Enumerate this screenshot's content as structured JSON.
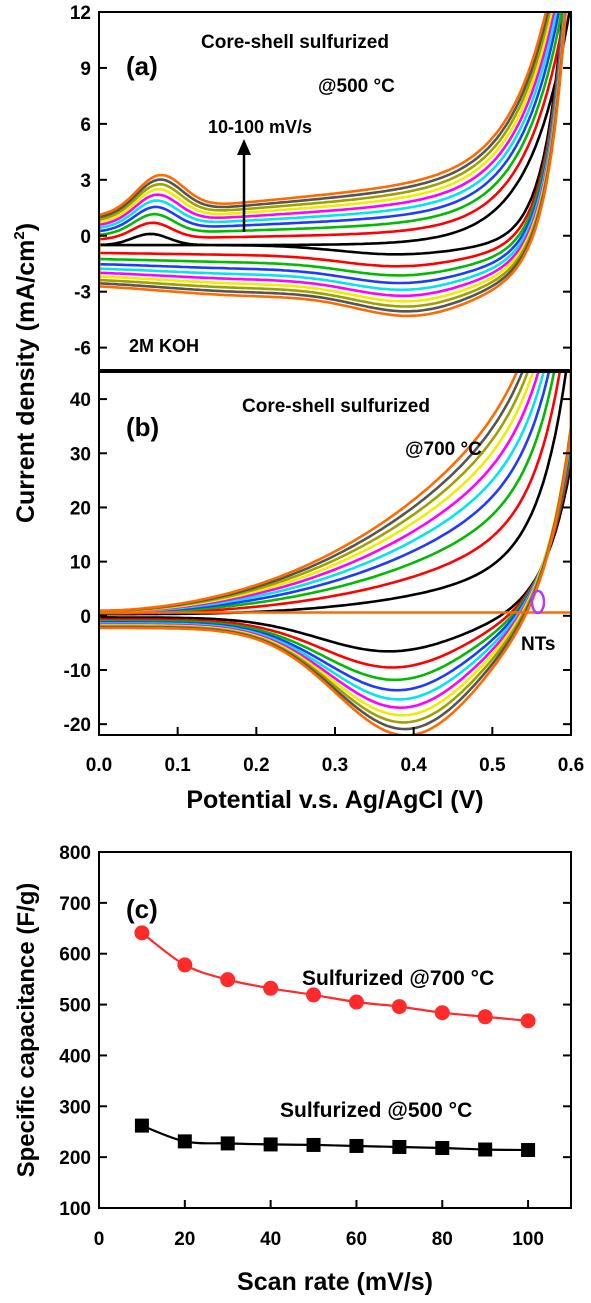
{
  "colors": {
    "scan_rates_order": [
      "10",
      "20",
      "30",
      "40",
      "50",
      "60",
      "70",
      "80",
      "90",
      "100"
    ],
    "series_palette": [
      "#000000",
      "#ff0000",
      "#00bb00",
      "#1e3cff",
      "#00e5ee",
      "#ff00ff",
      "#eeee00",
      "#a0a000",
      "#555555",
      "#ff6a00"
    ],
    "panel_c_700": "#ff2a2a",
    "panel_c_500": "#000000",
    "nts_marker": "#b23bff"
  },
  "chart_data": [
    {
      "id": "a",
      "type": "line",
      "label": "(a)",
      "annotations": {
        "title_line1": "Core-shell sulfurized",
        "title_line2": "@500 °C",
        "arrow_label": "10-100 mV/s",
        "electrolyte": "2M KOH"
      },
      "xlim": [
        0.0,
        0.6
      ],
      "ylim": [
        -7.2,
        12
      ],
      "yticks": [
        -6,
        -3,
        0,
        3,
        6,
        9,
        12
      ],
      "series_scan_rates": [
        10,
        20,
        30,
        40,
        50,
        60,
        70,
        80,
        90,
        100
      ],
      "peak_potential": 0.11,
      "cathodic_peak_potential": 0.4
    },
    {
      "id": "b",
      "type": "line",
      "label": "(b)",
      "annotations": {
        "title_line1": "Core-shell sulfurized",
        "title_line2": "@700 °C",
        "nts_label": "NTs"
      },
      "xlim": [
        0.0,
        0.6
      ],
      "ylim": [
        -22,
        45
      ],
      "yticks": [
        -20,
        -10,
        0,
        10,
        20,
        30,
        40
      ],
      "xticks": [
        "0.0",
        "0.1",
        "0.2",
        "0.3",
        "0.4",
        "0.5",
        "0.6"
      ],
      "xlabel": "Potential v.s. Ag/AgCl (V)",
      "series_scan_rates": [
        10,
        20,
        30,
        40,
        50,
        60,
        70,
        80,
        90,
        100
      ],
      "cathodic_peak_potential": 0.35
    },
    {
      "id": "c",
      "type": "scatter",
      "label": "(c)",
      "xlabel": "Scan rate (mV/s)",
      "ylabel": "Specific capacitance (F/g)",
      "xlim": [
        0,
        110
      ],
      "ylim": [
        100,
        800
      ],
      "xticks": [
        "0",
        "20",
        "40",
        "60",
        "80",
        "100"
      ],
      "yticks": [
        "100",
        "200",
        "300",
        "400",
        "500",
        "600",
        "700",
        "800"
      ],
      "x": [
        10,
        20,
        30,
        40,
        50,
        60,
        70,
        80,
        90,
        100
      ],
      "series": [
        {
          "name": "Sulfurized @700 °C",
          "marker": "circle",
          "values": [
            641,
            578,
            549,
            532,
            519,
            505,
            496,
            484,
            476,
            468
          ]
        },
        {
          "name": "Sulfurized @500 °C",
          "marker": "square",
          "values": [
            262,
            231,
            227,
            225,
            224,
            222,
            220,
            218,
            215,
            214
          ]
        }
      ]
    }
  ],
  "shared_ylabel": "Current density (mA/cm²)",
  "ylabel_ab_main": "Current density (mA/cm",
  "ylabel_ab_sup": "2",
  "ylabel_ab_close": ")"
}
